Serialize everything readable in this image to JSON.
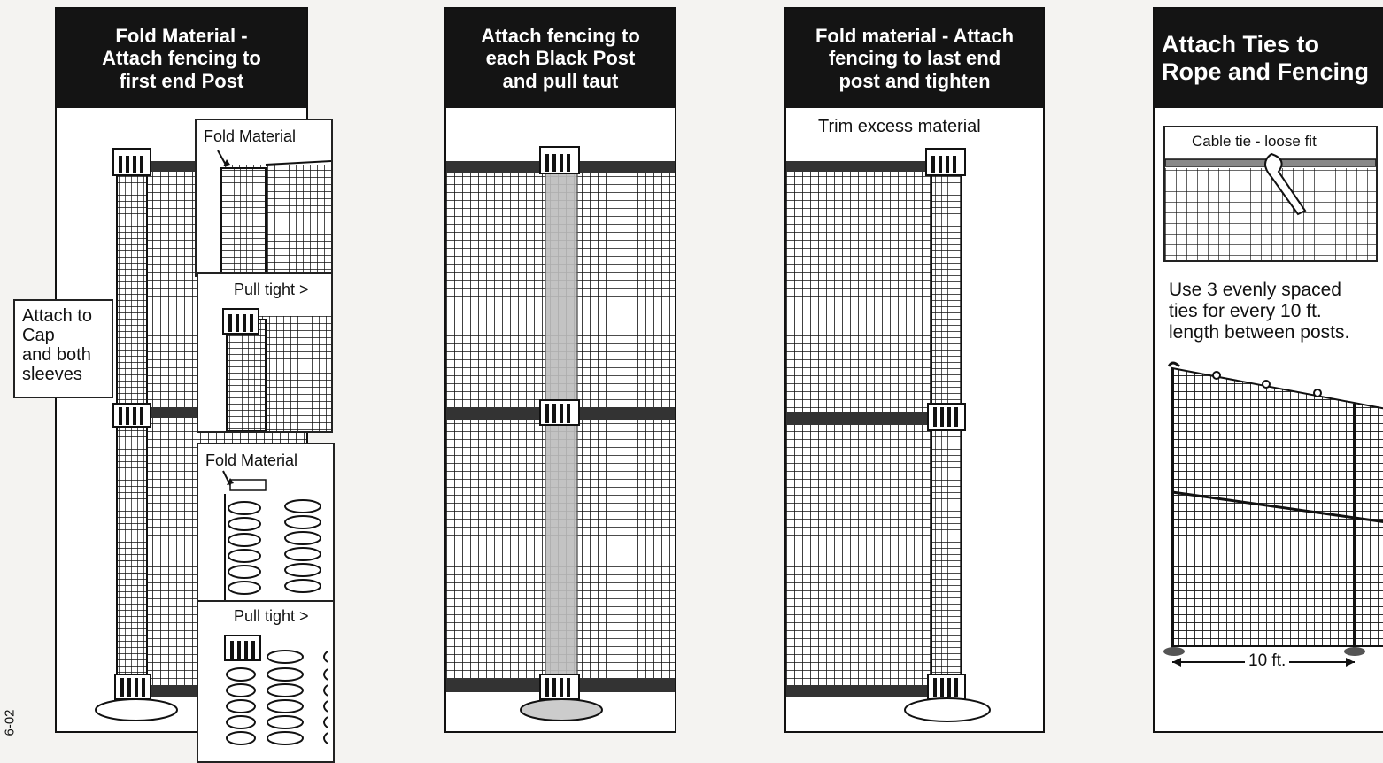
{
  "steps": [
    {
      "title": "Fold Material -\nAttach fencing to\nfirst end Post",
      "callout": "Attach to\nCap\nand both\nsleeves",
      "insets": {
        "fold_top": "Fold Material",
        "pull_top": "Pull tight >",
        "fold_bottom": "Fold Material",
        "pull_bottom": "Pull tight >"
      }
    },
    {
      "title": "Attach fencing to\neach Black Post\nand pull taut"
    },
    {
      "title": "Fold material - Attach\nfencing to last end\npost and tighten",
      "note": "Trim excess material"
    },
    {
      "title": "Attach Ties to\nRope and Fencing",
      "inset_label": "Cable tie - loose fit",
      "instruction": "Use 3 evenly spaced\nties for every 10 ft.\nlength between posts.",
      "dimension": "10 ft."
    }
  ],
  "figure_code": "6-02",
  "colors": {
    "header": "#141414",
    "ink": "#111111",
    "post": "#c8c8c8"
  }
}
